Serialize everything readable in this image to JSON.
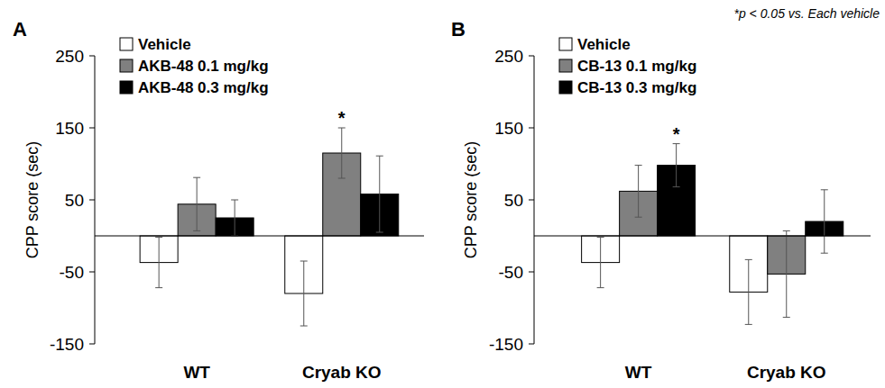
{
  "chart_data": [
    {
      "type": "bar",
      "title": "A",
      "y_label": "CPP score (sec)",
      "categories": [
        "WT",
        "Cryab KO"
      ],
      "series": [
        {
          "name": "Vehicle",
          "color": "#ffffff",
          "values": [
            -37,
            -80
          ],
          "errors": [
            35,
            45
          ]
        },
        {
          "name": "AKB-48 0.1 mg/kg",
          "color": "#808080",
          "values": [
            44,
            115
          ],
          "errors": [
            37,
            35
          ]
        },
        {
          "name": "AKB-48 0.3 mg/kg",
          "color": "#000000",
          "values": [
            25,
            58
          ],
          "errors": [
            25,
            53
          ]
        }
      ],
      "annotations": [
        {
          "text": "*",
          "series": 1,
          "category": 1
        }
      ],
      "ylim": [
        -150,
        250
      ],
      "yticks": [
        -150,
        -50,
        50,
        150,
        250
      ],
      "grid": false,
      "legend": "upper left"
    },
    {
      "type": "bar",
      "title": "B",
      "y_label": "CPP score (sec)",
      "categories": [
        "WT",
        "Cryab KO"
      ],
      "series": [
        {
          "name": "Vehicle",
          "color": "#ffffff",
          "values": [
            -37,
            -78
          ],
          "errors": [
            35,
            45
          ]
        },
        {
          "name": "CB-13 0.1 mg/kg",
          "color": "#808080",
          "values": [
            62,
            -53
          ],
          "errors": [
            36,
            60
          ]
        },
        {
          "name": "CB-13 0.3 mg/kg",
          "color": "#000000",
          "values": [
            98,
            20
          ],
          "errors": [
            30,
            44
          ]
        }
      ],
      "annotations": [
        {
          "text": "*",
          "series": 2,
          "category": 0
        }
      ],
      "ylim": [
        -150,
        250
      ],
      "yticks": [
        -150,
        -50,
        50,
        150,
        250
      ],
      "grid": false,
      "legend": "upper left"
    }
  ],
  "note": "*p < 0.05 vs. Each vehicle"
}
